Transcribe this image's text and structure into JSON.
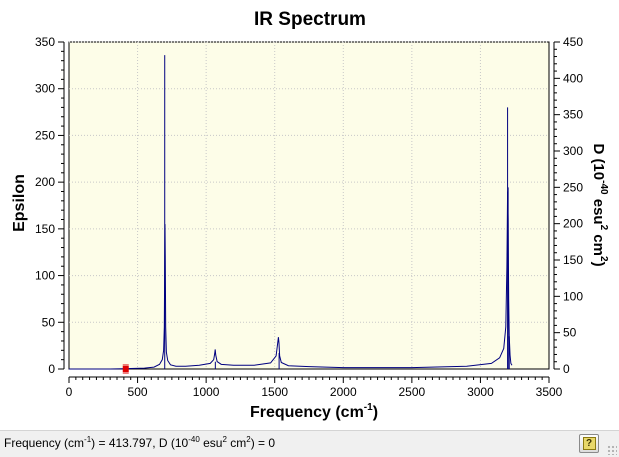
{
  "chart_data": {
    "type": "line",
    "title": "IR Spectrum",
    "xlabel": "Frequency",
    "xlabel_unit_base": "cm",
    "xlabel_unit_exp": "-1",
    "ylabel_left": "Epsilon",
    "ylabel_right": {
      "prefix": "D (10",
      "exp1": "-40",
      "mid": " esu",
      "exp2": "2",
      "mid2": " cm",
      "exp3": "2",
      "suffix": ")"
    },
    "xlim": [
      0,
      3500
    ],
    "ylim_left": [
      0,
      350
    ],
    "ylim_right": [
      0,
      450
    ],
    "x_ticks": [
      0,
      500,
      1000,
      1500,
      2000,
      2500,
      3000,
      3500
    ],
    "y_ticks_left": [
      0,
      50,
      100,
      150,
      200,
      250,
      300,
      350
    ],
    "y_ticks_right": [
      0,
      50,
      100,
      150,
      200,
      250,
      300,
      350,
      400,
      450
    ],
    "grid": true,
    "series": [
      {
        "role": "epsilon-curve",
        "color": "#000080",
        "x": [
          0,
          300,
          450,
          550,
          620,
          660,
          680,
          690,
          695,
          698,
          700,
          702,
          705,
          710,
          720,
          740,
          780,
          850,
          950,
          1030,
          1055,
          1063,
          1066,
          1070,
          1080,
          1110,
          1200,
          1350,
          1470,
          1510,
          1522,
          1527,
          1531,
          1536,
          1548,
          1600,
          1750,
          2000,
          2500,
          2900,
          3080,
          3140,
          3170,
          3185,
          3193,
          3198,
          3202,
          3206,
          3210,
          3216,
          3222,
          3230
        ],
        "y": [
          0,
          0,
          0.5,
          1,
          2,
          5,
          10,
          20,
          45,
          120,
          155,
          120,
          45,
          18,
          9,
          4.5,
          3,
          3,
          4,
          6,
          10,
          17,
          21,
          15,
          8,
          5,
          4,
          4,
          6.5,
          14,
          28,
          34,
          28,
          14,
          7,
          3.5,
          2.5,
          1.5,
          1.5,
          3,
          6,
          12,
          22,
          45,
          110,
          190,
          160,
          75,
          35,
          15,
          6,
          4
        ]
      }
    ],
    "sticks": [
      {
        "x": 698,
        "d": 432
      },
      {
        "x": 1067,
        "d": 10
      },
      {
        "x": 1532,
        "d": 22
      },
      {
        "x": 3198,
        "d": 360
      },
      {
        "x": 3202,
        "d": 250
      },
      {
        "x": 3210,
        "d": 45
      }
    ],
    "stick_color": "#000080",
    "cursor_marker": {
      "x": 413.797,
      "y": 0,
      "color": "#dd0000"
    },
    "plot_background": "#fdfde8",
    "grid_color": "#c8c8c8"
  },
  "status": {
    "label_pre": "Frequency (cm",
    "label_exp": "-1",
    "label_mid": ") = 413.797, D (10",
    "label_exp2": "-40",
    "label_mid2": " esu",
    "label_exp3": "2",
    "label_mid3": " cm",
    "label_exp4": "2",
    "label_post": ") = 0"
  },
  "help_button": {
    "icon": "question-icon",
    "glyph": "?"
  }
}
